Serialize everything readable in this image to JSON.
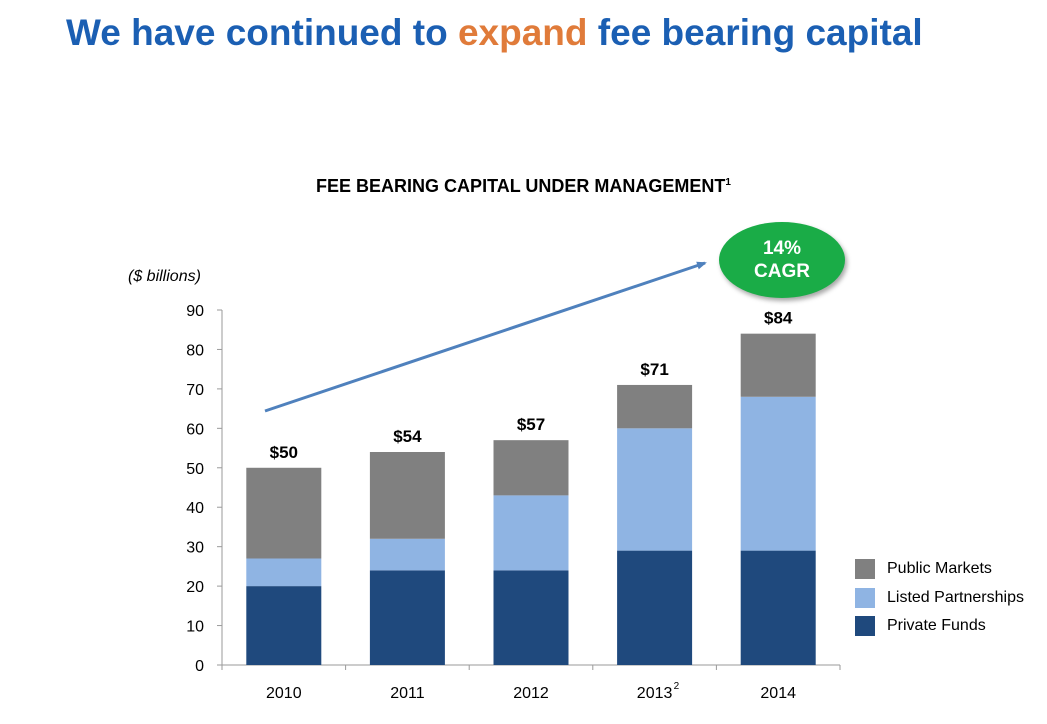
{
  "headline": {
    "before": "We have continued to ",
    "accent": "expand",
    "after": " fee bearing capital"
  },
  "chart_title": {
    "text": "FEE BEARING CAPITAL UNDER MANAGEMENT",
    "footnote": "1"
  },
  "cagr_badge": {
    "line1": "14%",
    "line2": "CAGR"
  },
  "colors": {
    "headline": "#1b5fb3",
    "headline_accent": "#e07b3a",
    "public_markets": "#808080",
    "listed_partnerships": "#8fb4e3",
    "private_funds": "#1f497d",
    "cagr_badge": "#1aac47",
    "trend_arrow": "#4f81bd"
  },
  "chart_data": {
    "type": "bar",
    "stacked": true,
    "ylabel": "($ billions)",
    "ylim": [
      0,
      90
    ],
    "yticks": [
      0,
      10,
      20,
      30,
      40,
      50,
      60,
      70,
      80,
      90
    ],
    "categories": [
      "2010",
      "2011",
      "2012",
      "2013",
      "2014"
    ],
    "category_footnotes": [
      "",
      "",
      "",
      "2",
      ""
    ],
    "series": [
      {
        "name": "Private Funds",
        "values": [
          20,
          24,
          24,
          29,
          29
        ]
      },
      {
        "name": "Listed Partnerships",
        "values": [
          7,
          8,
          19,
          31,
          39
        ]
      },
      {
        "name": "Public Markets",
        "values": [
          23,
          22,
          14,
          11,
          16
        ]
      }
    ],
    "totals": [
      "$50",
      "$54",
      "$57",
      "$71",
      "$84"
    ],
    "legend": [
      "Public Markets",
      "Listed Partnerships",
      "Private Funds"
    ],
    "legend_position": "bottom-right",
    "grid": false
  }
}
